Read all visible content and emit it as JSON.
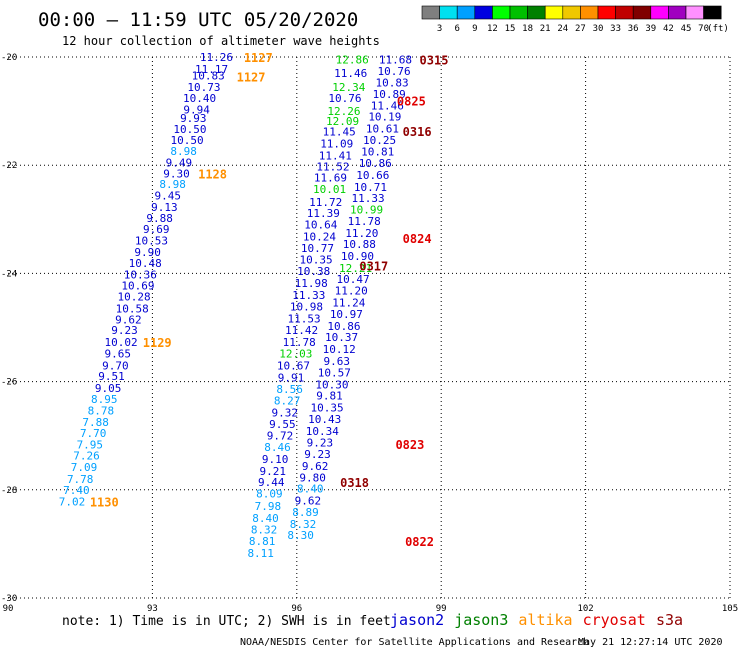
{
  "title": "00:00 – 11:59 UTC 05/20/2020",
  "subtitle": "12 hour collection of altimeter wave heights",
  "scale": {
    "unit_label": "(ft)",
    "labels": [
      "3",
      "6",
      "9",
      "12",
      "15",
      "18",
      "21",
      "24",
      "27",
      "30",
      "33",
      "36",
      "39",
      "42",
      "45",
      "70"
    ],
    "colors": [
      "#7f7f7f",
      "#00e0f0",
      "#00a0ff",
      "#0000e0",
      "#00ff00",
      "#00c000",
      "#008000",
      "#ffff00",
      "#f0c800",
      "#ff9000",
      "#ff0000",
      "#c00000",
      "#800000",
      "#ff00ff",
      "#a000c0",
      "#ff90ff",
      "#000000"
    ]
  },
  "note": "note: 1) Time is in UTC; 2) SWH is in feet",
  "satellites": [
    {
      "name": "jason2",
      "color": "#0000d0"
    },
    {
      "name": "jason3",
      "color": "#008000"
    },
    {
      "name": "altika",
      "color": "#ff9000"
    },
    {
      "name": "cryosat",
      "color": "#e00000"
    },
    {
      "name": "s3a",
      "color": "#900000"
    }
  ],
  "credit": "NOAA/NESDIS Center for Satellite Applications and Research",
  "timestamp": "May 21 12:27:14 UTC 2020",
  "chart_data": {
    "type": "scatter",
    "title": "00:00 – 11:59 UTC 05/20/2020",
    "subtitle": "12 hour collection of altimeter wave heights",
    "xlim": [
      90,
      105
    ],
    "ylim": [
      -30,
      -20
    ],
    "xticks": [
      90,
      93,
      96,
      99,
      102,
      105
    ],
    "yticks": [
      -20,
      -22,
      -24,
      -26,
      -28,
      -30
    ],
    "grid": true,
    "tracks": [
      {
        "name": "track-93",
        "points": [
          [
            94.33,
            -20.0,
            "11.26",
            "#0000d0"
          ],
          [
            94.23,
            -20.22,
            "11.17",
            "#0000d0"
          ],
          [
            94.16,
            -20.34,
            "10.83",
            "#0000d0"
          ],
          [
            94.07,
            -20.55,
            "10.73",
            "#0000d0"
          ],
          [
            93.98,
            -20.76,
            "10.40",
            "#0000d0"
          ],
          [
            93.92,
            -20.97,
            "9.94",
            "#0000d0"
          ],
          [
            93.85,
            -21.13,
            "9.93",
            "#0000d0"
          ],
          [
            93.78,
            -21.33,
            "10.50",
            "#0000d0"
          ],
          [
            93.72,
            -21.53,
            "10.50",
            "#0000d0"
          ],
          [
            93.65,
            -21.74,
            "8.98",
            "#00a0ff"
          ],
          [
            93.55,
            -21.95,
            "9.49",
            "#0000d0"
          ],
          [
            93.5,
            -22.15,
            "9.30",
            "#0000d0"
          ],
          [
            93.42,
            -22.35,
            "8.98",
            "#00a0ff"
          ],
          [
            93.32,
            -22.56,
            "9.45",
            "#0000d0"
          ],
          [
            93.25,
            -22.77,
            "9.13",
            "#0000d0"
          ],
          [
            93.15,
            -22.98,
            "9.88",
            "#0000d0"
          ],
          [
            93.08,
            -23.18,
            "9.69",
            "#0000d0"
          ],
          [
            92.98,
            -23.39,
            "10.53",
            "#0000d0"
          ],
          [
            92.9,
            -23.6,
            "9.90",
            "#0000d0"
          ],
          [
            92.85,
            -23.81,
            "10.48",
            "#0000d0"
          ],
          [
            92.75,
            -24.02,
            "10.36",
            "#0000d0"
          ],
          [
            92.7,
            -24.22,
            "10.69",
            "#0000d0"
          ],
          [
            92.62,
            -24.43,
            "10.28",
            "#0000d0"
          ],
          [
            92.58,
            -24.65,
            "10.58",
            "#0000d0"
          ],
          [
            92.5,
            -24.85,
            "9.62",
            "#0000d0"
          ],
          [
            92.42,
            -25.05,
            "9.23",
            "#0000d0"
          ],
          [
            92.35,
            -25.27,
            "10.02",
            "#0000d0"
          ],
          [
            92.28,
            -25.48,
            "9.65",
            "#0000d0"
          ],
          [
            92.23,
            -25.7,
            "9.70",
            "#0000d0"
          ],
          [
            92.15,
            -25.9,
            "9.51",
            "#0000d0"
          ],
          [
            92.08,
            -26.12,
            "9.05",
            "#0000d0"
          ],
          [
            92.0,
            -26.32,
            "8.95",
            "#00a0ff"
          ],
          [
            91.93,
            -26.53,
            "8.78",
            "#00a0ff"
          ],
          [
            91.82,
            -26.75,
            "7.88",
            "#00a0ff"
          ],
          [
            91.77,
            -26.95,
            "7.70",
            "#00a0ff"
          ],
          [
            91.7,
            -27.16,
            "7.95",
            "#00a0ff"
          ],
          [
            91.63,
            -27.37,
            "7.26",
            "#00a0ff"
          ],
          [
            91.58,
            -27.58,
            "7.09",
            "#00a0ff"
          ],
          [
            91.5,
            -27.8,
            "7.78",
            "#00a0ff"
          ],
          [
            91.42,
            -28.0,
            "7.40",
            "#00a0ff"
          ],
          [
            91.33,
            -28.22,
            "7.02",
            "#00a0ff"
          ]
        ]
      },
      {
        "name": "track-96",
        "points": [
          [
            97.15,
            -20.05,
            "12.86",
            "#00d000"
          ],
          [
            97.12,
            -20.3,
            "11.46",
            "#0000d0"
          ],
          [
            97.08,
            -20.55,
            "12.34",
            "#00d000"
          ],
          [
            97.0,
            -20.76,
            "10.76",
            "#0000d0"
          ],
          [
            96.98,
            -21.0,
            "12.26",
            "#00d000"
          ],
          [
            96.95,
            -21.18,
            "12.09",
            "#00d000"
          ],
          [
            96.88,
            -21.38,
            "11.45",
            "#0000d0"
          ],
          [
            96.83,
            -21.6,
            "11.09",
            "#0000d0"
          ],
          [
            96.8,
            -21.82,
            "11.41",
            "#0000d0"
          ],
          [
            96.75,
            -22.02,
            "11.52",
            "#0000d0"
          ],
          [
            96.7,
            -22.23,
            "11.69",
            "#0000d0"
          ],
          [
            96.68,
            -22.44,
            "10.01",
            "#00d000"
          ],
          [
            96.6,
            -22.68,
            "11.72",
            "#0000d0"
          ],
          [
            96.55,
            -22.88,
            "11.39",
            "#0000d0"
          ],
          [
            96.5,
            -23.1,
            "10.64",
            "#0000d0"
          ],
          [
            96.47,
            -23.32,
            "10.24",
            "#0000d0"
          ],
          [
            96.43,
            -23.53,
            "10.77",
            "#0000d0"
          ],
          [
            96.4,
            -23.74,
            "10.35",
            "#0000d0"
          ],
          [
            96.35,
            -23.96,
            "10.38",
            "#0000d0"
          ],
          [
            96.3,
            -24.18,
            "11.98",
            "#0000d0"
          ],
          [
            96.25,
            -24.4,
            "11.33",
            "#0000d0"
          ],
          [
            96.2,
            -24.61,
            "10.98",
            "#0000d0"
          ],
          [
            96.15,
            -24.83,
            "11.53",
            "#0000d0"
          ],
          [
            96.1,
            -25.05,
            "11.42",
            "#0000d0"
          ],
          [
            96.05,
            -25.27,
            "11.78",
            "#0000d0"
          ],
          [
            95.98,
            -25.48,
            "12.03",
            "#00d000"
          ],
          [
            95.93,
            -25.7,
            "10.67",
            "#0000d0"
          ],
          [
            95.88,
            -25.92,
            "9.91",
            "#0000d0"
          ],
          [
            95.85,
            -26.14,
            "8.56",
            "#00a0ff"
          ],
          [
            95.8,
            -26.35,
            "8.27",
            "#00a0ff"
          ],
          [
            95.75,
            -26.57,
            "9.32",
            "#0000d0"
          ],
          [
            95.7,
            -26.78,
            "9.55",
            "#0000d0"
          ],
          [
            95.65,
            -27.0,
            "9.72",
            "#0000d0"
          ],
          [
            95.6,
            -27.21,
            "8.46",
            "#00a0ff"
          ],
          [
            95.55,
            -27.43,
            "9.10",
            "#0000d0"
          ],
          [
            95.5,
            -27.65,
            "9.21",
            "#0000d0"
          ],
          [
            95.47,
            -27.86,
            "9.44",
            "#0000d0"
          ],
          [
            95.43,
            -28.07,
            "8.09",
            "#00a0ff"
          ],
          [
            95.4,
            -28.3,
            "7.98",
            "#00a0ff"
          ],
          [
            95.35,
            -28.52,
            "8.40",
            "#00a0ff"
          ],
          [
            95.32,
            -28.73,
            "8.32",
            "#00a0ff"
          ],
          [
            95.28,
            -28.95,
            "8.81",
            "#00a0ff"
          ],
          [
            95.25,
            -29.17,
            "8.11",
            "#00a0ff"
          ]
        ]
      },
      {
        "name": "track-98",
        "points": [
          [
            98.05,
            -20.05,
            "11.68",
            "#0000d0"
          ],
          [
            98.02,
            -20.26,
            "10.76",
            "#0000d0"
          ],
          [
            97.98,
            -20.47,
            "10.83",
            "#0000d0"
          ],
          [
            97.92,
            -20.68,
            "10.89",
            "#0000d0"
          ],
          [
            97.88,
            -20.9,
            "11.46",
            "#0000d0"
          ],
          [
            97.83,
            -21.1,
            "10.19",
            "#0000d0"
          ],
          [
            97.78,
            -21.32,
            "10.61",
            "#0000d0"
          ],
          [
            97.72,
            -21.53,
            "10.25",
            "#0000d0"
          ],
          [
            97.68,
            -21.75,
            "10.81",
            "#0000d0"
          ],
          [
            97.63,
            -21.96,
            "10.86",
            "#0000d0"
          ],
          [
            97.58,
            -22.18,
            "10.66",
            "#0000d0"
          ],
          [
            97.53,
            -22.4,
            "10.71",
            "#0000d0"
          ],
          [
            97.48,
            -22.61,
            "11.33",
            "#0000d0"
          ],
          [
            97.45,
            -22.82,
            "10.99",
            "#00d000"
          ],
          [
            97.4,
            -23.03,
            "11.78",
            "#0000d0"
          ],
          [
            97.35,
            -23.25,
            "11.20",
            "#0000d0"
          ],
          [
            97.3,
            -23.46,
            "10.88",
            "#0000d0"
          ],
          [
            97.26,
            -23.68,
            "10.90",
            "#0000d0"
          ],
          [
            97.22,
            -23.9,
            "12.21",
            "#00d000"
          ],
          [
            97.17,
            -24.1,
            "10.47",
            "#0000d0"
          ],
          [
            97.13,
            -24.32,
            "11.20",
            "#0000d0"
          ],
          [
            97.08,
            -24.54,
            "11.24",
            "#0000d0"
          ],
          [
            97.03,
            -24.75,
            "10.97",
            "#0000d0"
          ],
          [
            96.98,
            -24.97,
            "10.86",
            "#0000d0"
          ],
          [
            96.93,
            -25.18,
            "10.37",
            "#0000d0"
          ],
          [
            96.88,
            -25.4,
            "10.12",
            "#0000d0"
          ],
          [
            96.83,
            -25.62,
            "9.63",
            "#0000d0"
          ],
          [
            96.78,
            -25.83,
            "10.57",
            "#0000d0"
          ],
          [
            96.73,
            -26.05,
            "10.30",
            "#0000d0"
          ],
          [
            96.68,
            -26.26,
            "9.81",
            "#0000d0"
          ],
          [
            96.63,
            -26.48,
            "10.35",
            "#0000d0"
          ],
          [
            96.58,
            -26.69,
            "10.43",
            "#0000d0"
          ],
          [
            96.53,
            -26.91,
            "10.34",
            "#0000d0"
          ],
          [
            96.48,
            -27.13,
            "9.23",
            "#0000d0"
          ],
          [
            96.43,
            -27.34,
            "9.23",
            "#0000d0"
          ],
          [
            96.38,
            -27.56,
            "9.62",
            "#0000d0"
          ],
          [
            96.33,
            -27.77,
            "9.80",
            "#0000d0"
          ],
          [
            96.28,
            -27.98,
            "8.40",
            "#00a0ff"
          ],
          [
            96.23,
            -28.2,
            "9.62",
            "#0000d0"
          ],
          [
            96.18,
            -28.41,
            "8.89",
            "#00a0ff"
          ],
          [
            96.13,
            -28.63,
            "8.32",
            "#00a0ff"
          ],
          [
            96.08,
            -28.84,
            "8.30",
            "#00a0ff"
          ]
        ]
      }
    ],
    "time_labels": [
      {
        "text": "1127",
        "x": 95.2,
        "y": -20.0,
        "color": "#ff9000"
      },
      {
        "text": "1127",
        "x": 95.05,
        "y": -20.36,
        "color": "#ff9000"
      },
      {
        "text": "1128",
        "x": 94.25,
        "y": -22.15,
        "color": "#ff9000"
      },
      {
        "text": "1129",
        "x": 93.1,
        "y": -25.27,
        "color": "#ff9000"
      },
      {
        "text": "1130",
        "x": 92.0,
        "y": -28.22,
        "color": "#ff9000"
      },
      {
        "text": "0315",
        "x": 98.85,
        "y": -20.05,
        "color": "#900000"
      },
      {
        "text": "0825",
        "x": 98.38,
        "y": -20.8,
        "color": "#e00000"
      },
      {
        "text": "0316",
        "x": 98.5,
        "y": -21.37,
        "color": "#900000"
      },
      {
        "text": "0824",
        "x": 98.5,
        "y": -23.35,
        "color": "#e00000"
      },
      {
        "text": "0317",
        "x": 97.6,
        "y": -23.85,
        "color": "#900000"
      },
      {
        "text": "0318",
        "x": 97.2,
        "y": -27.86,
        "color": "#900000"
      },
      {
        "text": "0823",
        "x": 98.35,
        "y": -27.15,
        "color": "#e00000"
      },
      {
        "text": "0822",
        "x": 98.55,
        "y": -28.95,
        "color": "#e00000"
      }
    ]
  }
}
